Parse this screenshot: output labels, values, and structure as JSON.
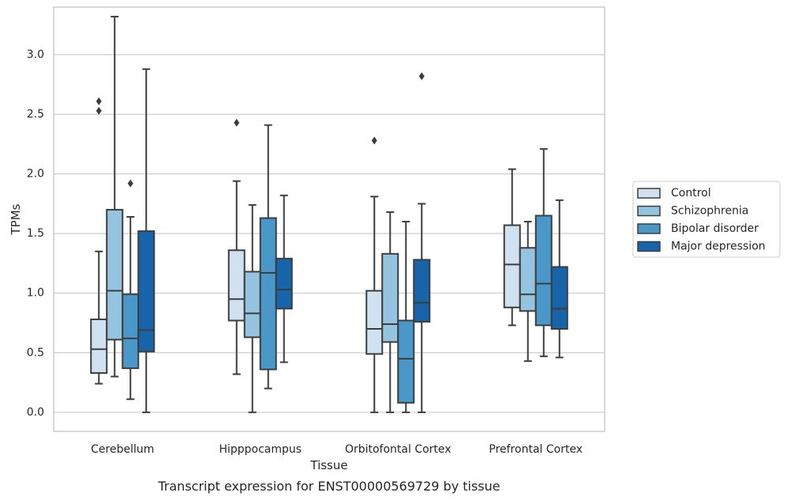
{
  "chart_data": {
    "type": "box",
    "xlabel": "Tissue",
    "ylabel": "TPMs",
    "caption": "Transcript expression for ENST00000569729 by tissue",
    "ylim": [
      -0.16,
      3.4
    ],
    "yticks": [
      0.0,
      0.5,
      1.0,
      1.5,
      2.0,
      2.5,
      3.0
    ],
    "ytick_labels": [
      "0.0",
      "0.5",
      "1.0",
      "1.5",
      "2.0",
      "2.5",
      "3.0"
    ],
    "grid": "horizontal",
    "legend_position": "right",
    "categories": [
      "Cerebellum",
      "Hipppocampus",
      "Orbitofontal Cortex",
      "Prefrontal Cortex"
    ],
    "series": [
      {
        "name": "Control",
        "color": "#d0e1f2",
        "boxes": [
          {
            "min": 0.24,
            "q1": 0.33,
            "median": 0.53,
            "q3": 0.78,
            "max": 1.35,
            "outliers": [
              2.53,
              2.61
            ]
          },
          {
            "min": 0.32,
            "q1": 0.77,
            "median": 0.95,
            "q3": 1.36,
            "max": 1.94,
            "outliers": [
              2.43
            ]
          },
          {
            "min": 0.0,
            "q1": 0.49,
            "median": 0.7,
            "q3": 1.02,
            "max": 1.81,
            "outliers": [
              2.28
            ]
          },
          {
            "min": 0.73,
            "q1": 0.88,
            "median": 1.24,
            "q3": 1.57,
            "max": 2.04,
            "outliers": []
          }
        ]
      },
      {
        "name": "Schizophrenia",
        "color": "#94c4df",
        "boxes": [
          {
            "min": 0.3,
            "q1": 0.61,
            "median": 1.02,
            "q3": 1.7,
            "max": 3.32,
            "outliers": []
          },
          {
            "min": 0.0,
            "q1": 0.63,
            "median": 0.83,
            "q3": 1.18,
            "max": 1.74,
            "outliers": []
          },
          {
            "min": 0.0,
            "q1": 0.59,
            "median": 0.74,
            "q3": 1.33,
            "max": 1.68,
            "outliers": []
          },
          {
            "min": 0.43,
            "q1": 0.85,
            "median": 0.99,
            "q3": 1.38,
            "max": 1.6,
            "outliers": []
          }
        ]
      },
      {
        "name": "Bipolar disorder",
        "color": "#4a98c9",
        "boxes": [
          {
            "min": 0.11,
            "q1": 0.37,
            "median": 0.62,
            "q3": 0.99,
            "max": 1.64,
            "outliers": [
              1.92
            ]
          },
          {
            "min": 0.2,
            "q1": 0.36,
            "median": 1.17,
            "q3": 1.63,
            "max": 2.41,
            "outliers": []
          },
          {
            "min": 0.0,
            "q1": 0.08,
            "median": 0.45,
            "q3": 0.77,
            "max": 1.6,
            "outliers": []
          },
          {
            "min": 0.47,
            "q1": 0.73,
            "median": 1.08,
            "q3": 1.65,
            "max": 2.21,
            "outliers": []
          }
        ]
      },
      {
        "name": "Major depression",
        "color": "#1764ab",
        "boxes": [
          {
            "min": 0.0,
            "q1": 0.51,
            "median": 0.69,
            "q3": 1.52,
            "max": 2.88,
            "outliers": []
          },
          {
            "min": 0.42,
            "q1": 0.87,
            "median": 1.03,
            "q3": 1.29,
            "max": 1.82,
            "outliers": []
          },
          {
            "min": 0.0,
            "q1": 0.76,
            "median": 0.92,
            "q3": 1.28,
            "max": 1.75,
            "outliers": [
              2.82
            ]
          },
          {
            "min": 0.46,
            "q1": 0.7,
            "median": 0.87,
            "q3": 1.22,
            "max": 1.78,
            "outliers": []
          }
        ]
      }
    ]
  }
}
